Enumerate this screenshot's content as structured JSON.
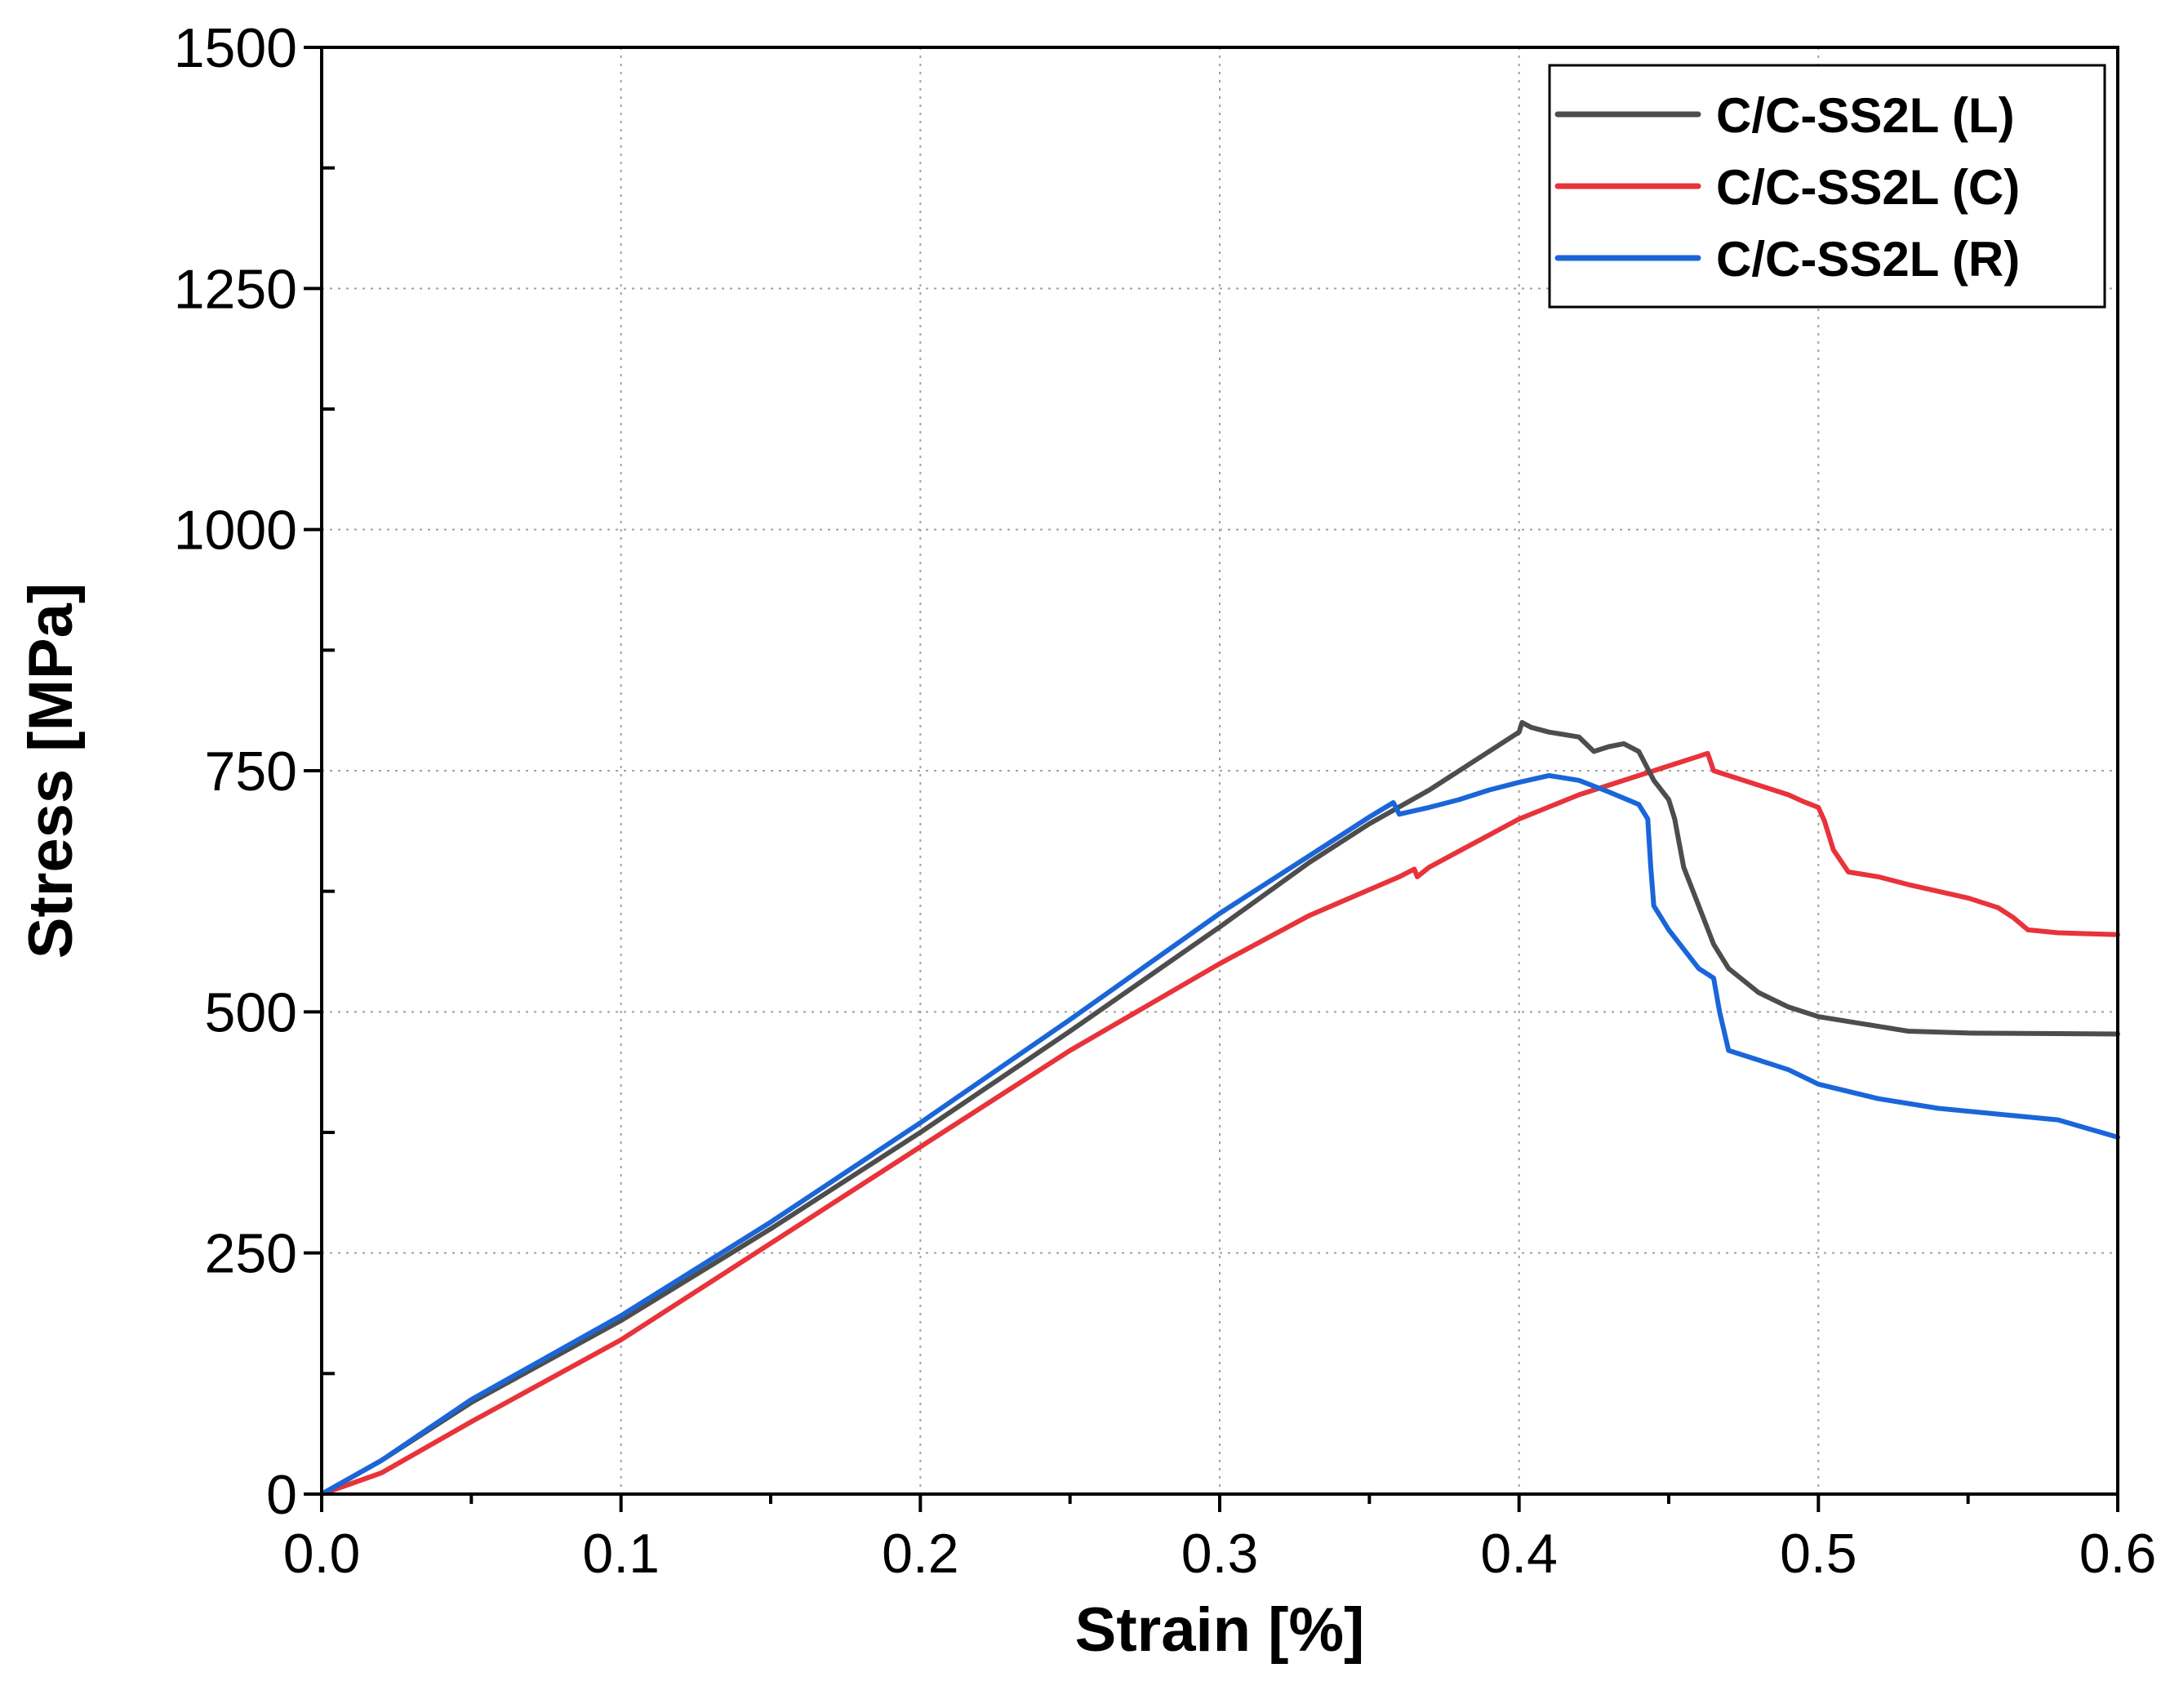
{
  "chart_data": {
    "type": "line",
    "title": "",
    "xlabel": "Strain [%]",
    "ylabel": "Stress [MPa]",
    "xlim": [
      0.0,
      0.6
    ],
    "ylim": [
      0,
      1500
    ],
    "x_ticks": [
      0.0,
      0.1,
      0.2,
      0.3,
      0.4,
      0.5,
      0.6
    ],
    "x_tick_labels": [
      "0.0",
      "0.1",
      "0.2",
      "0.3",
      "0.4",
      "0.5",
      "0.6"
    ],
    "y_ticks": [
      0,
      250,
      500,
      750,
      1000,
      1250,
      1500
    ],
    "y_tick_labels": [
      "0",
      "250",
      "500",
      "750",
      "1000",
      "1250",
      "1500"
    ],
    "grid": true,
    "legend_position": "top-right",
    "series": [
      {
        "name": "C/C-SS2L (L)",
        "color": "#4d4d4d",
        "points": [
          [
            0.0,
            0
          ],
          [
            0.02,
            35
          ],
          [
            0.05,
            95
          ],
          [
            0.1,
            180
          ],
          [
            0.15,
            275
          ],
          [
            0.2,
            375
          ],
          [
            0.25,
            480
          ],
          [
            0.3,
            588
          ],
          [
            0.33,
            655
          ],
          [
            0.35,
            695
          ],
          [
            0.37,
            730
          ],
          [
            0.39,
            770
          ],
          [
            0.4,
            790
          ],
          [
            0.401,
            800
          ],
          [
            0.404,
            795
          ],
          [
            0.41,
            790
          ],
          [
            0.42,
            785
          ],
          [
            0.425,
            770
          ],
          [
            0.43,
            775
          ],
          [
            0.435,
            778
          ],
          [
            0.44,
            770
          ],
          [
            0.445,
            740
          ],
          [
            0.45,
            720
          ],
          [
            0.452,
            700
          ],
          [
            0.455,
            650
          ],
          [
            0.46,
            610
          ],
          [
            0.465,
            570
          ],
          [
            0.47,
            545
          ],
          [
            0.48,
            520
          ],
          [
            0.49,
            505
          ],
          [
            0.5,
            495
          ],
          [
            0.52,
            485
          ],
          [
            0.53,
            480
          ],
          [
            0.55,
            478
          ],
          [
            0.6,
            477
          ]
        ]
      },
      {
        "name": "C/C-SS2L (C)",
        "color": "#e8333b",
        "points": [
          [
            0.0,
            0
          ],
          [
            0.02,
            22
          ],
          [
            0.05,
            75
          ],
          [
            0.1,
            160
          ],
          [
            0.15,
            260
          ],
          [
            0.2,
            360
          ],
          [
            0.25,
            460
          ],
          [
            0.3,
            550
          ],
          [
            0.33,
            600
          ],
          [
            0.36,
            640
          ],
          [
            0.365,
            648
          ],
          [
            0.366,
            640
          ],
          [
            0.37,
            650
          ],
          [
            0.4,
            700
          ],
          [
            0.42,
            725
          ],
          [
            0.44,
            745
          ],
          [
            0.45,
            755
          ],
          [
            0.46,
            765
          ],
          [
            0.463,
            768
          ],
          [
            0.465,
            750
          ],
          [
            0.47,
            745
          ],
          [
            0.48,
            735
          ],
          [
            0.49,
            725
          ],
          [
            0.495,
            718
          ],
          [
            0.5,
            712
          ],
          [
            0.502,
            698
          ],
          [
            0.505,
            668
          ],
          [
            0.51,
            645
          ],
          [
            0.52,
            640
          ],
          [
            0.53,
            632
          ],
          [
            0.54,
            625
          ],
          [
            0.55,
            618
          ],
          [
            0.56,
            608
          ],
          [
            0.565,
            598
          ],
          [
            0.57,
            585
          ],
          [
            0.58,
            582
          ],
          [
            0.6,
            580
          ]
        ]
      },
      {
        "name": "C/C-SS2L (R)",
        "color": "#1a66d9",
        "points": [
          [
            0.0,
            0
          ],
          [
            0.02,
            35
          ],
          [
            0.05,
            98
          ],
          [
            0.1,
            185
          ],
          [
            0.15,
            282
          ],
          [
            0.2,
            385
          ],
          [
            0.25,
            492
          ],
          [
            0.3,
            602
          ],
          [
            0.33,
            662
          ],
          [
            0.35,
            702
          ],
          [
            0.358,
            717
          ],
          [
            0.36,
            705
          ],
          [
            0.37,
            712
          ],
          [
            0.38,
            720
          ],
          [
            0.39,
            730
          ],
          [
            0.4,
            738
          ],
          [
            0.41,
            745
          ],
          [
            0.42,
            740
          ],
          [
            0.43,
            728
          ],
          [
            0.44,
            715
          ],
          [
            0.443,
            700
          ],
          [
            0.444,
            650
          ],
          [
            0.445,
            610
          ],
          [
            0.45,
            585
          ],
          [
            0.455,
            565
          ],
          [
            0.46,
            545
          ],
          [
            0.465,
            535
          ],
          [
            0.467,
            500
          ],
          [
            0.47,
            460
          ],
          [
            0.48,
            450
          ],
          [
            0.49,
            440
          ],
          [
            0.5,
            425
          ],
          [
            0.52,
            410
          ],
          [
            0.54,
            400
          ],
          [
            0.56,
            394
          ],
          [
            0.58,
            388
          ],
          [
            0.6,
            370
          ]
        ]
      }
    ]
  }
}
